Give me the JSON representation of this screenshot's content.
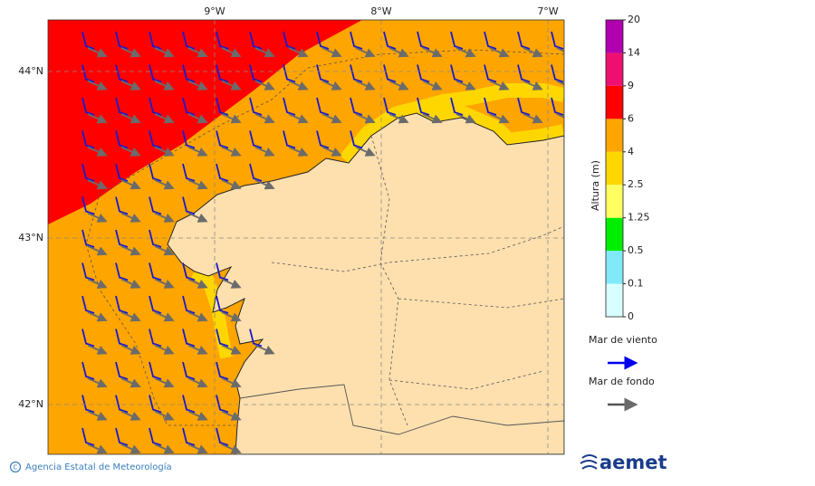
{
  "map": {
    "lon_labels": [
      "9°W",
      "8°W",
      "7°W"
    ],
    "lat_labels": [
      "44°N",
      "43°N",
      "42°N"
    ]
  },
  "colorbar": {
    "title": "Altura (m)",
    "levels": [
      0,
      0.1,
      0.5,
      1.25,
      2.5,
      4,
      6,
      9,
      14,
      20
    ],
    "colors": [
      "#d8ffff",
      "#80eaf8",
      "#00ee00",
      "#ffff60",
      "#ffd700",
      "#ffa500",
      "#ff0000",
      "#ee1070",
      "#b000b0"
    ]
  },
  "legend": {
    "items": [
      {
        "label": "Mar de viento",
        "color": "#0000ee"
      },
      {
        "label": "Mar de fondo",
        "color": "#555555"
      }
    ]
  },
  "footer": {
    "credit": "Agencia Estatal de Meteorología",
    "logo": "aemet"
  }
}
